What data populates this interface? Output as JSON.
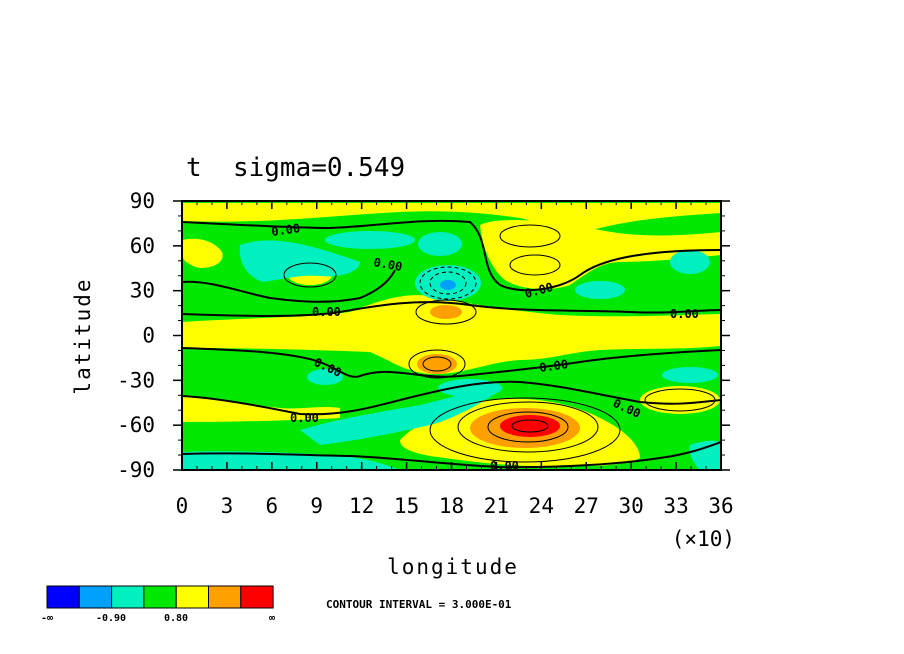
{
  "chart_data": {
    "type": "heatmap",
    "title": "t  sigma=0.549",
    "xlabel": "longitude",
    "ylabel": "latitude",
    "x_ticks": [
      "0",
      "3",
      "6",
      "9",
      "12",
      "15",
      "18",
      "21",
      "24",
      "27",
      "30",
      "33",
      "36"
    ],
    "x_multiplier": "(×10)",
    "y_ticks": [
      "90",
      "60",
      "30",
      "0",
      "-30",
      "-60",
      "-90"
    ],
    "xlim": [
      0,
      360
    ],
    "ylim": [
      -90,
      90
    ],
    "zero_contour_label": "0.00",
    "contour_interval_text": "CONTOUR INTERVAL = 3.000E-01",
    "colorbar": {
      "colors": [
        "#0000ff",
        "#00a0ff",
        "#00f0c0",
        "#00e800",
        "#ffff00",
        "#ffa000",
        "#ff0000"
      ],
      "labels": [
        "-∞",
        "-0.90",
        "0.80",
        "∞"
      ]
    },
    "features": [
      {
        "kind": "peak",
        "lon": 230,
        "lat": -60,
        "value": 1.4
      },
      {
        "kind": "peak",
        "lon": 170,
        "lat": -18,
        "value": 0.8
      },
      {
        "kind": "peak",
        "lon": 177,
        "lat": 17,
        "value": 0.6
      },
      {
        "kind": "trough",
        "lon": 178,
        "lat": 35,
        "value": -1.0
      }
    ]
  }
}
